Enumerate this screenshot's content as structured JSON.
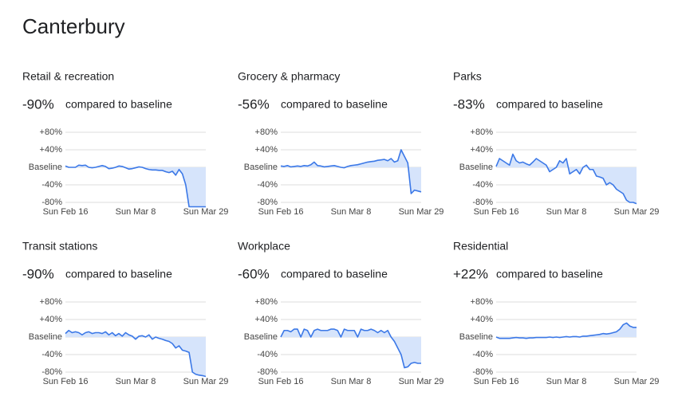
{
  "title": "Canterbury",
  "chart_data": [
    {
      "type": "line",
      "title": "Retail & recreation",
      "summary": "-90%",
      "summary_text": "compared to baseline",
      "color": "#3b78e7",
      "fill": "#d6e4fb",
      "categories": [
        "Sun Feb 16",
        null,
        null,
        null,
        null,
        null,
        null,
        null,
        null,
        null,
        null,
        null,
        null,
        null,
        null,
        null,
        null,
        null,
        null,
        null,
        null,
        "Sun Mar 8",
        null,
        null,
        null,
        null,
        null,
        null,
        null,
        null,
        null,
        null,
        null,
        null,
        null,
        null,
        null,
        null,
        null,
        null,
        null,
        null,
        "Sun Mar 29"
      ],
      "values": [
        3,
        0,
        0,
        0,
        5,
        4,
        5,
        0,
        -1,
        0,
        2,
        4,
        2,
        -3,
        -2,
        0,
        3,
        2,
        -1,
        -4,
        -3,
        -1,
        1,
        0,
        -3,
        -5,
        -6,
        -6,
        -7,
        -7,
        -10,
        -12,
        -9,
        -18,
        -5,
        -15,
        -40,
        -90,
        -90,
        -90,
        -90,
        -90,
        -90
      ],
      "ylim": [
        -80,
        80
      ],
      "yticks": [
        {
          "value": 80,
          "label": "+80%"
        },
        {
          "value": 40,
          "label": "+40%"
        },
        {
          "value": 0,
          "label": "Baseline"
        },
        {
          "value": -40,
          "label": "-40%"
        },
        {
          "value": -80,
          "label": "-80%"
        }
      ],
      "grid": true
    },
    {
      "type": "line",
      "title": "Grocery & pharmacy",
      "summary": "-56%",
      "summary_text": "compared to baseline",
      "color": "#3b78e7",
      "fill": "#d6e4fb",
      "categories": [
        "Sun Feb 16",
        null,
        null,
        null,
        null,
        null,
        null,
        null,
        null,
        null,
        null,
        null,
        null,
        null,
        null,
        null,
        null,
        null,
        null,
        null,
        null,
        "Sun Mar 8",
        null,
        null,
        null,
        null,
        null,
        null,
        null,
        null,
        null,
        null,
        null,
        null,
        null,
        null,
        null,
        null,
        null,
        null,
        null,
        null,
        "Sun Mar 29"
      ],
      "values": [
        3,
        2,
        4,
        1,
        2,
        3,
        2,
        4,
        3,
        6,
        12,
        4,
        3,
        1,
        2,
        3,
        4,
        2,
        0,
        -1,
        2,
        4,
        5,
        6,
        8,
        10,
        12,
        13,
        14,
        16,
        17,
        18,
        15,
        20,
        12,
        15,
        40,
        25,
        10,
        -60,
        -52,
        -54,
        -56
      ],
      "ylim": [
        -80,
        80
      ],
      "yticks": [
        {
          "value": 80,
          "label": "+80%"
        },
        {
          "value": 40,
          "label": "+40%"
        },
        {
          "value": 0,
          "label": "Baseline"
        },
        {
          "value": -40,
          "label": "-40%"
        },
        {
          "value": -80,
          "label": "-80%"
        }
      ],
      "grid": true
    },
    {
      "type": "line",
      "title": "Parks",
      "summary": "-83%",
      "summary_text": "compared to baseline",
      "color": "#3b78e7",
      "fill": "#d6e4fb",
      "categories": [
        "Sun Feb 16",
        null,
        null,
        null,
        null,
        null,
        null,
        null,
        null,
        null,
        null,
        null,
        null,
        null,
        null,
        null,
        null,
        null,
        null,
        null,
        null,
        "Sun Mar 8",
        null,
        null,
        null,
        null,
        null,
        null,
        null,
        null,
        null,
        null,
        null,
        null,
        null,
        null,
        null,
        null,
        null,
        null,
        null,
        null,
        "Sun Mar 29"
      ],
      "values": [
        2,
        20,
        15,
        10,
        5,
        30,
        15,
        10,
        12,
        8,
        5,
        12,
        20,
        15,
        10,
        5,
        -10,
        -5,
        0,
        15,
        10,
        20,
        -15,
        -10,
        -5,
        -15,
        0,
        5,
        -5,
        -5,
        -20,
        -22,
        -25,
        -40,
        -35,
        -40,
        -50,
        -55,
        -60,
        -75,
        -80,
        -80,
        -83
      ],
      "ylim": [
        -80,
        80
      ],
      "yticks": [
        {
          "value": 80,
          "label": "+80%"
        },
        {
          "value": 40,
          "label": "+40%"
        },
        {
          "value": 0,
          "label": "Baseline"
        },
        {
          "value": -40,
          "label": "-40%"
        },
        {
          "value": -80,
          "label": "-80%"
        }
      ],
      "grid": true
    },
    {
      "type": "line",
      "title": "Transit stations",
      "summary": "-90%",
      "summary_text": "compared to baseline",
      "color": "#3b78e7",
      "fill": "#d6e4fb",
      "categories": [
        "Sun Feb 16",
        null,
        null,
        null,
        null,
        null,
        null,
        null,
        null,
        null,
        null,
        null,
        null,
        null,
        null,
        null,
        null,
        null,
        null,
        null,
        null,
        "Sun Mar 8",
        null,
        null,
        null,
        null,
        null,
        null,
        null,
        null,
        null,
        null,
        null,
        null,
        null,
        null,
        null,
        null,
        null,
        null,
        null,
        null,
        "Sun Mar 29"
      ],
      "values": [
        8,
        15,
        10,
        12,
        10,
        5,
        10,
        12,
        8,
        10,
        10,
        8,
        12,
        5,
        10,
        3,
        8,
        2,
        10,
        5,
        2,
        -5,
        2,
        3,
        0,
        5,
        -5,
        0,
        -3,
        -5,
        -8,
        -10,
        -15,
        -25,
        -20,
        -30,
        -32,
        -35,
        -80,
        -85,
        -87,
        -88,
        -90
      ],
      "ylim": [
        -80,
        80
      ],
      "yticks": [
        {
          "value": 80,
          "label": "+80%"
        },
        {
          "value": 40,
          "label": "+40%"
        },
        {
          "value": 0,
          "label": "Baseline"
        },
        {
          "value": -40,
          "label": "-40%"
        },
        {
          "value": -80,
          "label": "-80%"
        }
      ],
      "grid": true
    },
    {
      "type": "line",
      "title": "Workplace",
      "summary": "-60%",
      "summary_text": "compared to baseline",
      "color": "#3b78e7",
      "fill": "#d6e4fb",
      "categories": [
        "Sun Feb 16",
        null,
        null,
        null,
        null,
        null,
        null,
        null,
        null,
        null,
        null,
        null,
        null,
        null,
        null,
        null,
        null,
        null,
        null,
        null,
        null,
        "Sun Mar 8",
        null,
        null,
        null,
        null,
        null,
        null,
        null,
        null,
        null,
        null,
        null,
        null,
        null,
        null,
        null,
        null,
        null,
        null,
        null,
        null,
        "Sun Mar 29"
      ],
      "values": [
        0,
        15,
        15,
        12,
        18,
        18,
        0,
        18,
        15,
        0,
        15,
        18,
        15,
        15,
        15,
        18,
        18,
        15,
        0,
        18,
        15,
        15,
        15,
        0,
        18,
        15,
        15,
        18,
        15,
        10,
        15,
        10,
        15,
        0,
        -10,
        -25,
        -40,
        -70,
        -68,
        -60,
        -58,
        -60,
        -60
      ],
      "ylim": [
        -80,
        80
      ],
      "yticks": [
        {
          "value": 80,
          "label": "+80%"
        },
        {
          "value": 40,
          "label": "+40%"
        },
        {
          "value": 0,
          "label": "Baseline"
        },
        {
          "value": -40,
          "label": "-40%"
        },
        {
          "value": -80,
          "label": "-80%"
        }
      ],
      "grid": true
    },
    {
      "type": "line",
      "title": "Residential",
      "summary": "+22%",
      "summary_text": "compared to baseline",
      "color": "#3b78e7",
      "fill": "#d6e4fb",
      "categories": [
        "Sun Feb 16",
        null,
        null,
        null,
        null,
        null,
        null,
        null,
        null,
        null,
        null,
        null,
        null,
        null,
        null,
        null,
        null,
        null,
        null,
        null,
        null,
        "Sun Mar 8",
        null,
        null,
        null,
        null,
        null,
        null,
        null,
        null,
        null,
        null,
        null,
        null,
        null,
        null,
        null,
        null,
        null,
        null,
        null,
        null,
        "Sun Mar 29"
      ],
      "values": [
        0,
        -3,
        -3,
        -3,
        -3,
        -2,
        -1,
        -2,
        -2,
        -3,
        -2,
        -2,
        -1,
        -1,
        -1,
        -1,
        0,
        -1,
        0,
        -1,
        0,
        1,
        0,
        1,
        1,
        0,
        2,
        2,
        3,
        4,
        5,
        6,
        8,
        7,
        8,
        10,
        12,
        18,
        28,
        32,
        25,
        22,
        22
      ],
      "ylim": [
        -80,
        80
      ],
      "yticks": [
        {
          "value": 80,
          "label": "+80%"
        },
        {
          "value": 40,
          "label": "+40%"
        },
        {
          "value": 0,
          "label": "Baseline"
        },
        {
          "value": -40,
          "label": "-40%"
        },
        {
          "value": -80,
          "label": "-80%"
        }
      ],
      "grid": true
    }
  ]
}
